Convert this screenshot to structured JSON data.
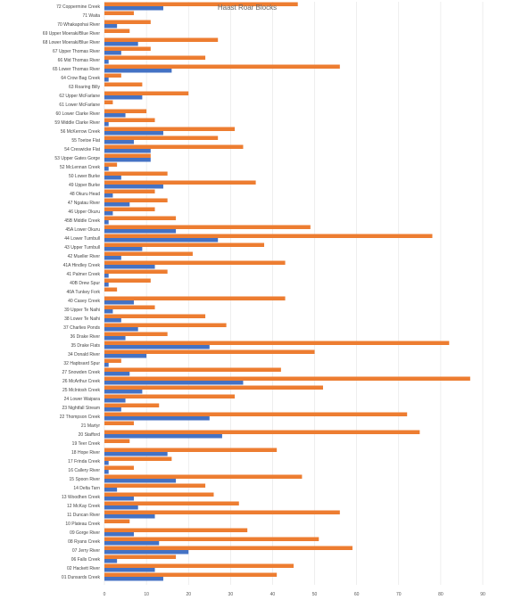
{
  "chart_data": {
    "type": "bar",
    "orientation": "horizontal",
    "title": "Haast Roar Blocks",
    "xlabel": "",
    "ylabel": "",
    "xlim": [
      0,
      90
    ],
    "xticks": [
      0,
      10,
      20,
      30,
      40,
      50,
      60,
      70,
      80,
      90
    ],
    "grid": true,
    "legend": "none",
    "colors": {
      "series_a": "#ED7D31",
      "series_b": "#4472C4"
    },
    "categories": [
      "72 Coppermine Creek",
      "71 Waita",
      "70 Whakapohai River",
      "69 Upper Moeraki/Blue River",
      "68 Lower Moeraki/Blue River",
      "67 Upper Thomas River",
      "66 Mid Thomas River",
      "65 Lower Thomas River",
      "64 Crow Bag Creek",
      "63 Roaring Billy",
      "62 Upper McFarlane",
      "61 Lower McFarlane",
      "60 Lower Clarke River",
      "59 Middle Clarke River",
      "56 McKerrow Creek",
      "55 Toetoe Flat",
      "54 Creswicke Flat",
      "53 Upper Gates Gorge",
      "52 McLennan Creek",
      "50 Lower Burke",
      "49 Upper Burke",
      "48 Okuru Head",
      "47 Ngatau River",
      "46 Upper Okuru",
      "45B Middle Creek",
      "45A Lower Okuru",
      "44 Lower Turnbull",
      "43 Upper Turnbull",
      "42 Mueller River",
      "41A Hindley Creek",
      "41 Palmer Creek",
      "40B Drew Spur",
      "40A Tunkey Fork",
      "40 Casey Creek",
      "39 Upper Te Naihi",
      "38 Lower Te Naihi",
      "37 Charlies Ponds",
      "36 Drake River",
      "35 Drake Flats",
      "34 Donald River",
      "32 Hapbsard Spur",
      "27 Snowden Creek",
      "26 McArthur Creek",
      "25 McIntosh Creek",
      "24 Lower Waipara",
      "23 Nightfall Stream",
      "22 Thompson Creek",
      "21 Martyr",
      "20 Stafford",
      "19 Teer Creek",
      "18 Hope River",
      "17 Frinda Creek",
      "16 Callery River",
      "15 Spoon River",
      "14 Delta Tarn",
      "13 Woodhen Creek",
      "12 McKay Creek",
      "11 Duncan River",
      "10 Plateau Creek",
      "09 Gorge River",
      "08 Ryans Creek",
      "07 Jerry River",
      "06 Falls Creek",
      "02 Hackett River",
      "01 Dunsards Creek"
    ],
    "series": [
      {
        "values": [
          46,
          7,
          11,
          6,
          27,
          11,
          24,
          56,
          4,
          9,
          20,
          2,
          10,
          12,
          31,
          27,
          33,
          11,
          3,
          15,
          36,
          12,
          15,
          12,
          17,
          49,
          78,
          38,
          21,
          43,
          15,
          11,
          3,
          43,
          12,
          24,
          29,
          15,
          82,
          50,
          4,
          42,
          87,
          52,
          31,
          13,
          72,
          7,
          75,
          6,
          41,
          16,
          7,
          47,
          24,
          26,
          32,
          56,
          6,
          34,
          51,
          59,
          17,
          45,
          41
        ]
      },
      {
        "values": [
          14,
          0,
          3,
          0,
          8,
          4,
          1,
          16,
          1,
          0,
          9,
          0,
          5,
          1,
          14,
          7,
          11,
          11,
          1,
          4,
          14,
          2,
          6,
          2,
          1,
          17,
          27,
          9,
          4,
          12,
          1,
          1,
          0,
          7,
          2,
          4,
          8,
          5,
          25,
          10,
          1,
          6,
          33,
          9,
          5,
          4,
          25,
          0,
          28,
          0,
          15,
          1,
          1,
          17,
          3,
          7,
          8,
          12,
          0,
          7,
          13,
          20,
          3,
          12,
          14
        ]
      }
    ]
  }
}
